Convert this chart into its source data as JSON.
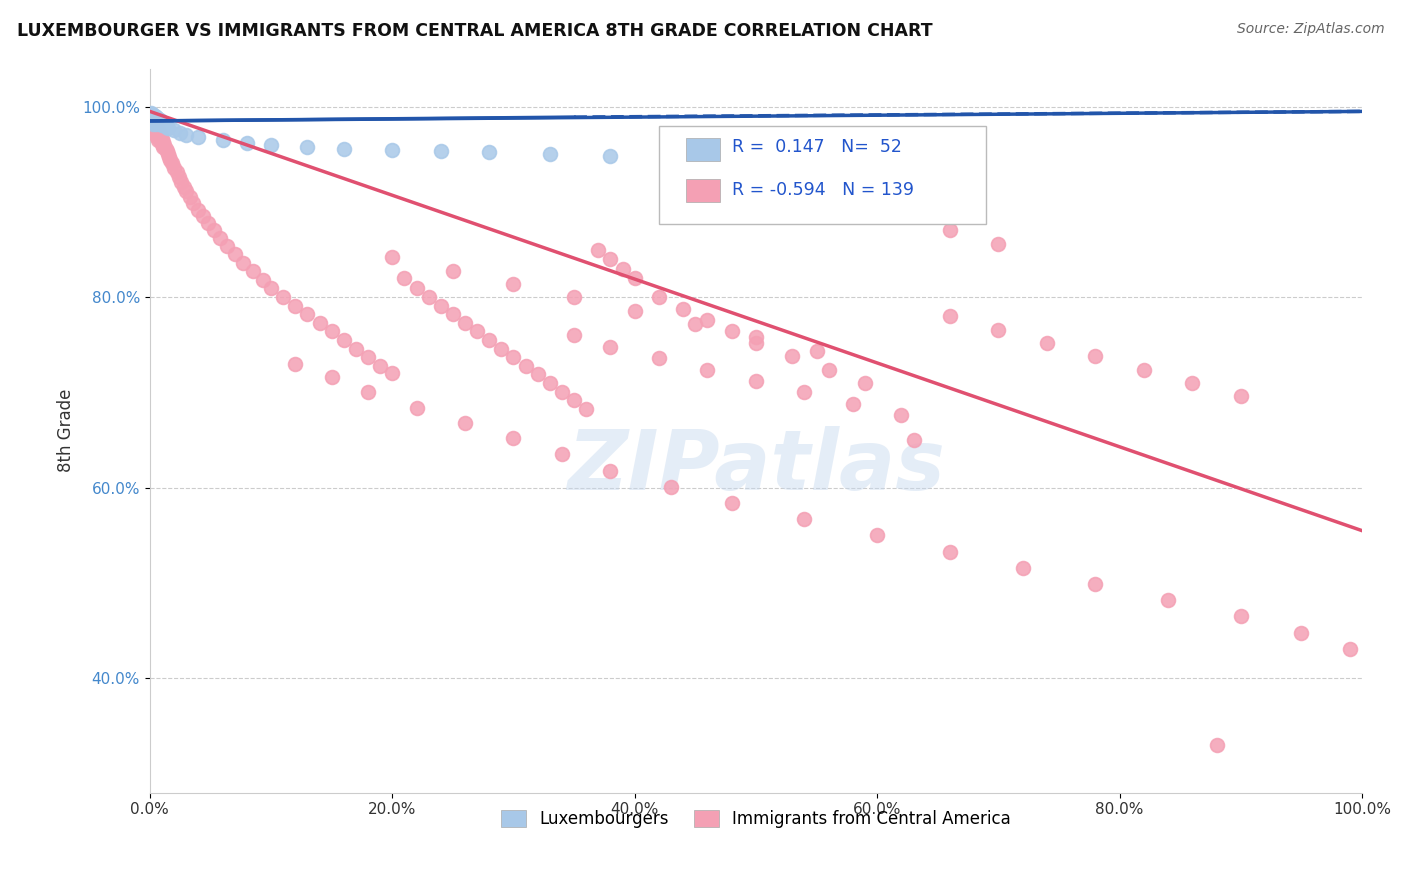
{
  "title": "LUXEMBOURGER VS IMMIGRANTS FROM CENTRAL AMERICA 8TH GRADE CORRELATION CHART",
  "source": "Source: ZipAtlas.com",
  "ylabel": "8th Grade",
  "xlim": [
    0.0,
    1.0
  ],
  "ylim": [
    0.28,
    1.04
  ],
  "xticks": [
    0.0,
    0.2,
    0.4,
    0.6,
    0.8,
    1.0
  ],
  "xticklabels": [
    "0.0%",
    "20.0%",
    "40.0%",
    "60.0%",
    "80.0%",
    "100.0%"
  ],
  "yticks": [
    0.4,
    0.6,
    0.8,
    1.0
  ],
  "yticklabels": [
    "40.0%",
    "60.0%",
    "80.0%",
    "100.0%"
  ],
  "blue_R": 0.147,
  "blue_N": 52,
  "pink_R": -0.594,
  "pink_N": 139,
  "blue_color": "#a8c8e8",
  "pink_color": "#f4a0b4",
  "blue_line_color": "#2255aa",
  "pink_line_color": "#e05070",
  "watermark_text": "ZIPatlas",
  "legend_label_blue": "Luxembourgers",
  "legend_label_pink": "Immigrants from Central America",
  "blue_scatter_x": [
    0.001,
    0.001,
    0.001,
    0.002,
    0.002,
    0.002,
    0.002,
    0.003,
    0.003,
    0.003,
    0.003,
    0.003,
    0.004,
    0.004,
    0.004,
    0.004,
    0.005,
    0.005,
    0.005,
    0.005,
    0.006,
    0.006,
    0.006,
    0.007,
    0.007,
    0.008,
    0.008,
    0.009,
    0.009,
    0.01,
    0.01,
    0.011,
    0.012,
    0.013,
    0.014,
    0.015,
    0.02,
    0.025,
    0.03,
    0.04,
    0.06,
    0.08,
    0.1,
    0.13,
    0.16,
    0.2,
    0.24,
    0.28,
    0.33,
    0.38,
    0.43,
    0.5
  ],
  "blue_scatter_y": [
    0.993,
    0.99,
    0.988,
    0.992,
    0.989,
    0.987,
    0.985,
    0.991,
    0.988,
    0.986,
    0.984,
    0.982,
    0.99,
    0.987,
    0.985,
    0.983,
    0.989,
    0.986,
    0.984,
    0.982,
    0.988,
    0.985,
    0.983,
    0.987,
    0.984,
    0.986,
    0.983,
    0.985,
    0.982,
    0.984,
    0.981,
    0.983,
    0.981,
    0.98,
    0.979,
    0.978,
    0.975,
    0.972,
    0.97,
    0.968,
    0.965,
    0.962,
    0.96,
    0.958,
    0.956,
    0.955,
    0.953,
    0.952,
    0.95,
    0.948,
    0.946,
    0.944
  ],
  "pink_scatter_x": [
    0.001,
    0.001,
    0.002,
    0.002,
    0.002,
    0.003,
    0.003,
    0.003,
    0.004,
    0.004,
    0.004,
    0.005,
    0.005,
    0.005,
    0.006,
    0.006,
    0.006,
    0.007,
    0.007,
    0.007,
    0.008,
    0.008,
    0.009,
    0.009,
    0.01,
    0.01,
    0.011,
    0.011,
    0.012,
    0.013,
    0.014,
    0.015,
    0.016,
    0.017,
    0.018,
    0.02,
    0.022,
    0.024,
    0.026,
    0.028,
    0.03,
    0.033,
    0.036,
    0.04,
    0.044,
    0.048,
    0.053,
    0.058,
    0.064,
    0.07,
    0.077,
    0.085,
    0.093,
    0.1,
    0.11,
    0.12,
    0.13,
    0.14,
    0.15,
    0.16,
    0.17,
    0.18,
    0.19,
    0.2,
    0.21,
    0.22,
    0.23,
    0.24,
    0.25,
    0.26,
    0.27,
    0.28,
    0.29,
    0.3,
    0.31,
    0.32,
    0.33,
    0.34,
    0.35,
    0.36,
    0.37,
    0.38,
    0.39,
    0.4,
    0.42,
    0.44,
    0.46,
    0.48,
    0.5,
    0.53,
    0.56,
    0.59,
    0.62,
    0.66,
    0.7,
    0.74,
    0.78,
    0.82,
    0.86,
    0.9,
    0.35,
    0.38,
    0.42,
    0.46,
    0.5,
    0.54,
    0.58,
    0.62,
    0.66,
    0.7,
    0.2,
    0.25,
    0.3,
    0.35,
    0.4,
    0.45,
    0.5,
    0.55,
    0.12,
    0.15,
    0.18,
    0.22,
    0.26,
    0.3,
    0.34,
    0.38,
    0.43,
    0.48,
    0.54,
    0.6,
    0.66,
    0.72,
    0.78,
    0.84,
    0.9,
    0.95,
    0.99,
    0.63,
    0.88
  ],
  "pink_scatter_y": [
    0.985,
    0.98,
    0.988,
    0.983,
    0.978,
    0.985,
    0.98,
    0.975,
    0.983,
    0.978,
    0.973,
    0.98,
    0.975,
    0.97,
    0.978,
    0.973,
    0.968,
    0.975,
    0.97,
    0.965,
    0.972,
    0.967,
    0.969,
    0.964,
    0.966,
    0.961,
    0.963,
    0.958,
    0.96,
    0.956,
    0.953,
    0.95,
    0.947,
    0.944,
    0.941,
    0.936,
    0.931,
    0.926,
    0.921,
    0.916,
    0.911,
    0.905,
    0.899,
    0.892,
    0.885,
    0.878,
    0.87,
    0.862,
    0.854,
    0.845,
    0.836,
    0.827,
    0.818,
    0.81,
    0.8,
    0.791,
    0.782,
    0.773,
    0.764,
    0.755,
    0.746,
    0.737,
    0.728,
    0.72,
    0.82,
    0.81,
    0.8,
    0.791,
    0.782,
    0.773,
    0.764,
    0.755,
    0.746,
    0.737,
    0.728,
    0.719,
    0.71,
    0.701,
    0.692,
    0.683,
    0.85,
    0.84,
    0.83,
    0.82,
    0.8,
    0.788,
    0.776,
    0.764,
    0.752,
    0.738,
    0.724,
    0.71,
    0.896,
    0.78,
    0.766,
    0.752,
    0.738,
    0.724,
    0.71,
    0.696,
    0.76,
    0.748,
    0.736,
    0.724,
    0.712,
    0.7,
    0.688,
    0.676,
    0.87,
    0.856,
    0.842,
    0.828,
    0.814,
    0.8,
    0.786,
    0.772,
    0.758,
    0.744,
    0.73,
    0.716,
    0.7,
    0.684,
    0.668,
    0.652,
    0.635,
    0.618,
    0.601,
    0.584,
    0.567,
    0.55,
    0.533,
    0.516,
    0.499,
    0.482,
    0.465,
    0.448,
    0.431,
    0.65,
    0.33
  ]
}
